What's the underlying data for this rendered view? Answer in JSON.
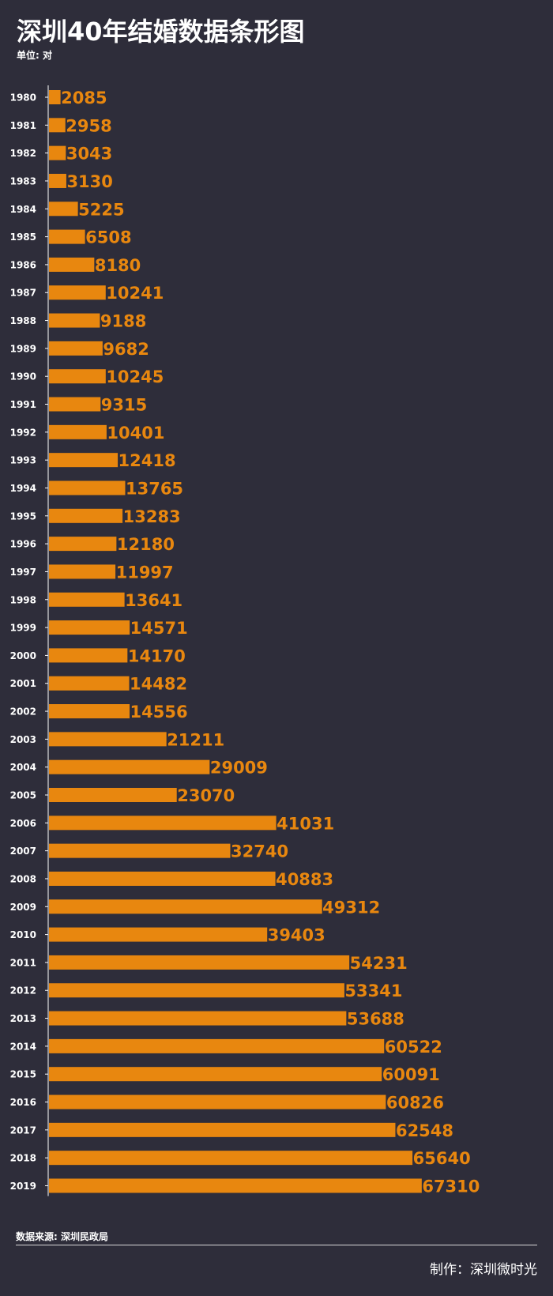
{
  "title": "深圳40年结婚数据条形图",
  "unit_label": "单位: 对",
  "source_label": "数据来源: 深圳民政局",
  "credit_label": "制作：深圳微时光",
  "colors": {
    "background": "#2e2d3a",
    "bar": "#e8870f",
    "text": "#ffffff"
  },
  "chart_data": {
    "type": "bar",
    "orientation": "horizontal",
    "categories": [
      "1980",
      "1981",
      "1982",
      "1983",
      "1984",
      "1985",
      "1986",
      "1987",
      "1988",
      "1989",
      "1990",
      "1991",
      "1992",
      "1993",
      "1994",
      "1995",
      "1996",
      "1997",
      "1998",
      "1999",
      "2000",
      "2001",
      "2002",
      "2003",
      "2004",
      "2005",
      "2006",
      "2007",
      "2008",
      "2009",
      "2010",
      "2011",
      "2012",
      "2013",
      "2014",
      "2015",
      "2016",
      "2017",
      "2018",
      "2019"
    ],
    "values": [
      2085,
      2958,
      3043,
      3130,
      5225,
      6508,
      8180,
      10241,
      9188,
      9682,
      10245,
      9315,
      10401,
      12418,
      13765,
      13283,
      12180,
      11997,
      13641,
      14571,
      14170,
      14482,
      14556,
      21211,
      29009,
      23070,
      41031,
      32740,
      40883,
      49312,
      39403,
      54231,
      53341,
      53688,
      60522,
      60091,
      60826,
      62548,
      65640,
      67310
    ],
    "xlim": [
      0,
      72000
    ],
    "grid": false,
    "data_labels": true
  }
}
